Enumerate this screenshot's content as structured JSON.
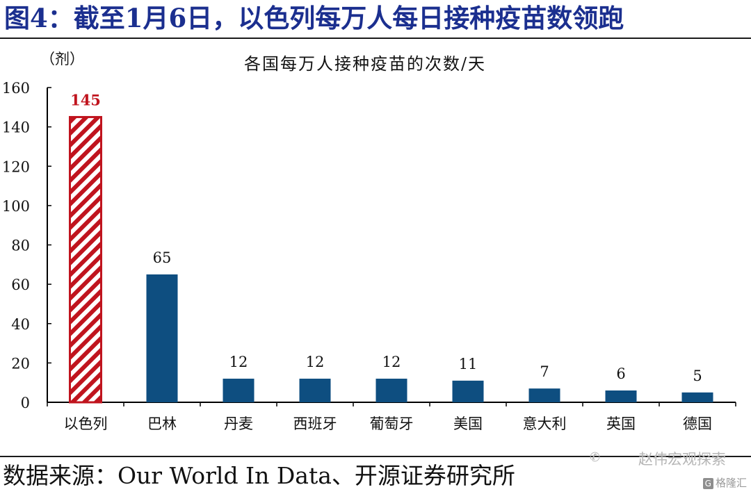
{
  "figure_title": "图4：截至1月6日，以色列每万人每日接种疫苗数领跑",
  "source": "数据来源：Our World In Data、开源证券研究所",
  "watermark": {
    "account": "赵伟宏观探索",
    "logo_text": "格隆汇",
    "logo_badge": "G"
  },
  "colors": {
    "title": "#1b2f8f",
    "bar": "#0e4e80",
    "highlight": "#c0141e"
  },
  "chart_data": {
    "type": "bar",
    "title": "各国每万人接种疫苗的次数/天",
    "ylabel": "（剂）",
    "xlabel": "",
    "ylim": [
      0,
      160
    ],
    "yticks": [
      0,
      20,
      40,
      60,
      80,
      100,
      120,
      140,
      160
    ],
    "grid": false,
    "legend": "none",
    "categories": [
      "以色列",
      "巴林",
      "丹麦",
      "西班牙",
      "葡萄牙",
      "美国",
      "意大利",
      "英国",
      "德国"
    ],
    "values": [
      145,
      65,
      12,
      12,
      12,
      11,
      7,
      6,
      5
    ],
    "highlight_index": 0,
    "highlight_style": "hatched"
  }
}
